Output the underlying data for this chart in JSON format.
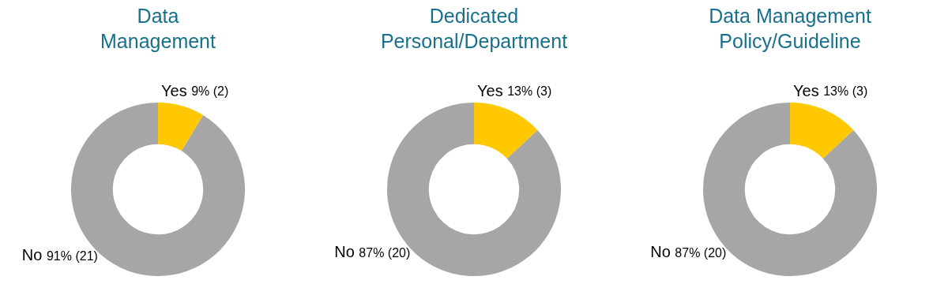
{
  "chart_data": [
    {
      "type": "donut",
      "title": "Data\nManagement",
      "categories": [
        "Yes",
        "No"
      ],
      "values": [
        2,
        21
      ],
      "colors": [
        "#ffc800",
        "#a6a6a6"
      ],
      "value_labels": [
        "9% (2)",
        "91% (21)"
      ]
    },
    {
      "type": "donut",
      "title": "Dedicated\nPersonal/Department",
      "categories": [
        "Yes",
        "No"
      ],
      "values": [
        3,
        20
      ],
      "colors": [
        "#ffc800",
        "#a6a6a6"
      ],
      "value_labels": [
        "13% (3)",
        "87% (20)"
      ]
    },
    {
      "type": "donut",
      "title": "Data Management\nPolicy/Guideline",
      "categories": [
        "Yes",
        "No"
      ],
      "values": [
        3,
        20
      ],
      "colors": [
        "#ffc800",
        "#a6a6a6"
      ],
      "value_labels": [
        "13% (3)",
        "87% (20)"
      ]
    }
  ]
}
